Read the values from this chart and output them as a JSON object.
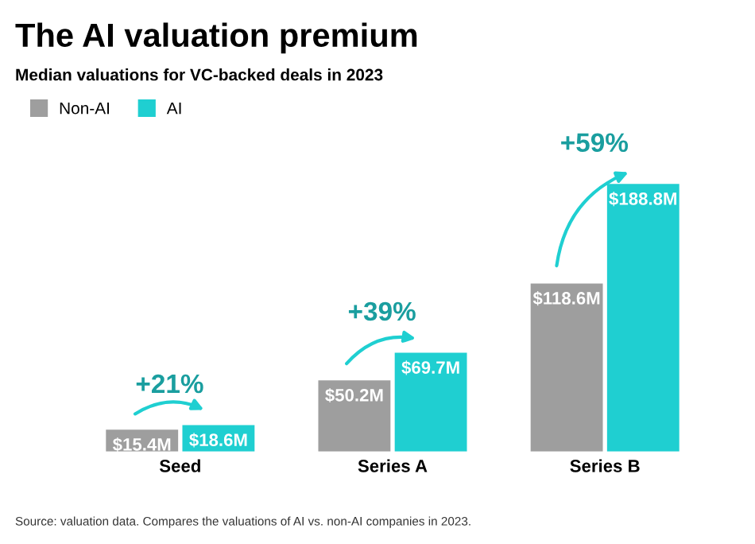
{
  "chart_data": {
    "type": "bar",
    "title": "The AI valuation premium",
    "subtitle": "Median valuations for VC-backed deals in 2023",
    "categories": [
      "Seed",
      "Series A",
      "Series B"
    ],
    "series": [
      {
        "name": "Non-AI",
        "color": "#9e9e9e",
        "values": [
          15.4,
          50.2,
          118.6
        ],
        "value_labels": [
          "$15.4M",
          "$50.2M",
          "$118.6M"
        ]
      },
      {
        "name": "AI",
        "color": "#1fcfd1",
        "values": [
          18.6,
          69.7,
          188.8
        ],
        "value_labels": [
          "$18.6M",
          "$69.7M",
          "$188.8M"
        ]
      }
    ],
    "annotations": [
      "+21%",
      "+39%",
      "+59%",
      "Source: valuation data. Compares the valuations of AI vs. non-AI companies in 2023."
    ],
    "legend": "top left",
    "grid": false
  }
}
